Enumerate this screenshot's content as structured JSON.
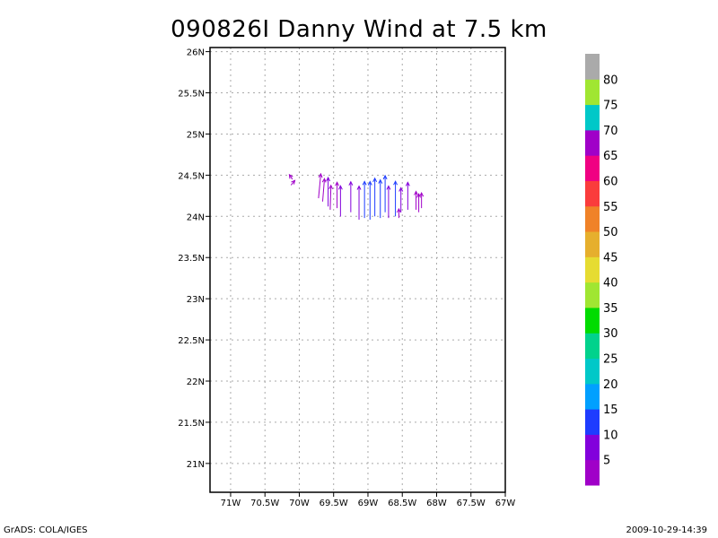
{
  "title": "090826I Danny Wind at 7.5 km",
  "footer": {
    "left": "GrADS: COLA/IGES",
    "right": "2009-10-29-14:39"
  },
  "chart_data": {
    "type": "vector",
    "title": "090826I Danny Wind at 7.5 km",
    "xlabel": "",
    "ylabel": "",
    "xlim": [
      -71.3,
      -67
    ],
    "ylim": [
      20.65,
      26.05
    ],
    "grid": true,
    "x_ticks": [
      -71,
      -70.5,
      -70,
      -69.5,
      -69,
      -68.5,
      -68,
      -67.5,
      -67
    ],
    "x_tick_labels": [
      "71W",
      "70.5W",
      "70W",
      "69.5W",
      "69W",
      "68.5W",
      "68W",
      "67.5W",
      "67W"
    ],
    "y_ticks": [
      21,
      21.5,
      22,
      22.5,
      23,
      23.5,
      24,
      24.5,
      25,
      25.5,
      26
    ],
    "y_tick_labels": [
      "21N",
      "21.5N",
      "22N",
      "22.5N",
      "23N",
      "23.5N",
      "24N",
      "24.5N",
      "25N",
      "25.5N",
      "26N"
    ],
    "colorbar": {
      "labels": [
        "5",
        "10",
        "15",
        "20",
        "25",
        "30",
        "35",
        "40",
        "45",
        "50",
        "55",
        "60",
        "65",
        "70",
        "75",
        "80"
      ],
      "colors": [
        "#a000c8",
        "#8200dc",
        "#1e3cff",
        "#00a0ff",
        "#00c8c8",
        "#00d28c",
        "#00dc00",
        "#a0e632",
        "#e6dc32",
        "#e6af2d",
        "#f08228",
        "#fa3c3c",
        "#f00082",
        "#a000c8",
        "#00c8c8",
        "#a0e632",
        "#aaaaaa"
      ]
    },
    "series": [
      {
        "color": "#a000c8",
        "vectors": [
          {
            "lon": -70.12,
            "lat": 24.38,
            "u": 0.25,
            "v": 0.3
          },
          {
            "lon": -70.1,
            "lat": 24.45,
            "u": -0.2,
            "v": 0.3
          },
          {
            "lon": -69.72,
            "lat": 24.22,
            "u": 0.15,
            "v": 1.6
          },
          {
            "lon": -69.66,
            "lat": 24.18,
            "u": 0.12,
            "v": 1.5
          },
          {
            "lon": -69.55,
            "lat": 24.08,
            "u": 0.05,
            "v": 1.6
          },
          {
            "lon": -69.45,
            "lat": 24.1,
            "u": 0.0,
            "v": 1.7
          },
          {
            "lon": -68.55,
            "lat": 23.98,
            "u": 0.0,
            "v": 0.6
          },
          {
            "lon": -68.3,
            "lat": 24.08,
            "u": 0.0,
            "v": 1.2
          },
          {
            "lon": -68.26,
            "lat": 24.05,
            "u": 0.0,
            "v": 1.2
          },
          {
            "lon": -68.22,
            "lat": 24.1,
            "u": 0.0,
            "v": 1.0
          }
        ]
      },
      {
        "color": "#8200dc",
        "vectors": [
          {
            "lon": -69.58,
            "lat": 24.12,
            "u": 0.0,
            "v": 1.9
          },
          {
            "lon": -69.4,
            "lat": 24.0,
            "u": 0.0,
            "v": 2.0
          },
          {
            "lon": -69.25,
            "lat": 24.05,
            "u": 0.0,
            "v": 2.0
          },
          {
            "lon": -69.13,
            "lat": 23.96,
            "u": 0.0,
            "v": 2.2
          },
          {
            "lon": -68.7,
            "lat": 23.98,
            "u": 0.0,
            "v": 2.1
          },
          {
            "lon": -68.52,
            "lat": 24.05,
            "u": 0.0,
            "v": 1.6
          },
          {
            "lon": -68.42,
            "lat": 24.08,
            "u": 0.0,
            "v": 1.8
          }
        ]
      },
      {
        "color": "#1e3cff",
        "vectors": [
          {
            "lon": -69.05,
            "lat": 23.98,
            "u": 0.0,
            "v": 2.4
          },
          {
            "lon": -68.97,
            "lat": 23.96,
            "u": 0.0,
            "v": 2.5
          },
          {
            "lon": -68.9,
            "lat": 24.0,
            "u": 0.0,
            "v": 2.5
          },
          {
            "lon": -68.82,
            "lat": 23.98,
            "u": 0.0,
            "v": 2.5
          },
          {
            "lon": -68.75,
            "lat": 24.05,
            "u": 0.0,
            "v": 2.4
          },
          {
            "lon": -68.6,
            "lat": 24.0,
            "u": 0.0,
            "v": 2.3
          }
        ]
      }
    ]
  }
}
